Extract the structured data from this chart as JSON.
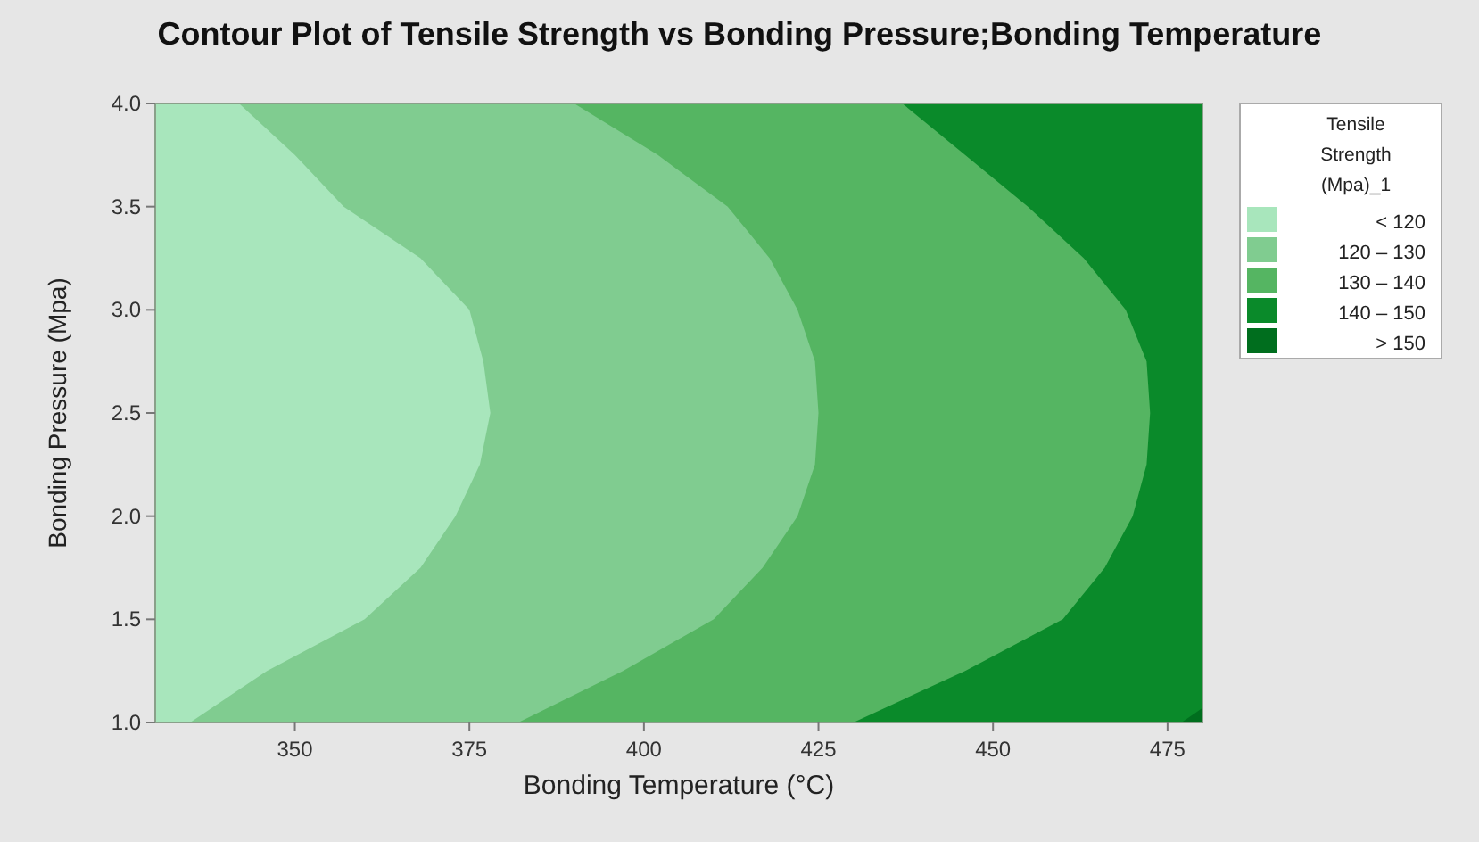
{
  "chart_data": {
    "type": "area",
    "title": "Contour Plot of Tensile Strength vs Bonding Pressure;Bonding Temperature",
    "xlabel": "Bonding Temperature (°C)",
    "ylabel": "Bonding Pressure (Mpa)",
    "legend_title": "Tensile Strength (Mpa)_1",
    "legend": "right",
    "xlim": [
      330,
      480
    ],
    "xticks": [
      350,
      375,
      400,
      425,
      450,
      475
    ],
    "ylim": [
      1,
      4
    ],
    "yticks": [
      {
        "value": 1,
        "label": "1.0"
      },
      {
        "value": 1.5,
        "label": "1.5"
      },
      {
        "value": 2,
        "label": "2.0"
      },
      {
        "value": 2.5,
        "label": "2.5"
      },
      {
        "value": 3,
        "label": "3.0"
      },
      {
        "value": 3.5,
        "label": "3.5"
      },
      {
        "value": 4,
        "label": "4.0"
      }
    ],
    "series": [
      {
        "name": "< 120",
        "color": "#a8e6bc",
        "x": [
          330,
          330,
          480,
          480
        ],
        "values": [
          1,
          4,
          4,
          1
        ]
      },
      {
        "name": "120 – 130",
        "color": "#80cc90",
        "x": [
          335,
          346,
          360,
          368,
          373,
          376.5,
          378,
          377,
          375,
          368,
          357,
          350,
          342,
          480,
          480
        ],
        "values": [
          1,
          1.25,
          1.5,
          1.75,
          2,
          2.25,
          2.5,
          2.75,
          3,
          3.25,
          3.5,
          3.75,
          4,
          4,
          1
        ]
      },
      {
        "name": "130 – 140",
        "color": "#55b562",
        "x": [
          382,
          397,
          410,
          417,
          422,
          424.5,
          425,
          424.5,
          422,
          418,
          412,
          402,
          390,
          480,
          480
        ],
        "values": [
          1,
          1.25,
          1.5,
          1.75,
          2,
          2.25,
          2.5,
          2.75,
          3,
          3.25,
          3.5,
          3.75,
          4,
          4,
          1
        ]
      },
      {
        "name": "140 – 150",
        "color": "#0a8a2a",
        "x": [
          430,
          446,
          460,
          466,
          470,
          472,
          472.5,
          472,
          469,
          463,
          455,
          446,
          437,
          480,
          480
        ],
        "values": [
          1,
          1.25,
          1.5,
          1.75,
          2,
          2.25,
          2.5,
          2.75,
          3,
          3.25,
          3.5,
          3.75,
          4,
          4,
          1
        ]
      },
      {
        "name": "> 150",
        "color": "#006e1e",
        "x": [
          477,
          480,
          480
        ],
        "values": [
          1,
          1.07,
          1
        ]
      }
    ]
  }
}
